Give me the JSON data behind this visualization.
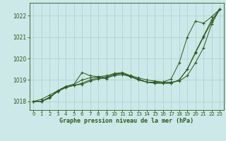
{
  "title": "Graphe pression niveau de la mer (hPa)",
  "background_color": "#cce8e8",
  "line_color": "#2d5a1b",
  "grid_color": "#b0d8d8",
  "xlim": [
    -0.5,
    23.5
  ],
  "ylim": [
    1017.6,
    1022.6
  ],
  "yticks": [
    1018,
    1019,
    1020,
    1021,
    1022
  ],
  "xticks": [
    0,
    1,
    2,
    3,
    4,
    5,
    6,
    7,
    8,
    9,
    10,
    11,
    12,
    13,
    14,
    15,
    16,
    17,
    18,
    19,
    20,
    21,
    22,
    23
  ],
  "series": [
    [
      1018.0,
      1018.0,
      1018.15,
      1018.5,
      1018.7,
      1018.8,
      1019.35,
      1019.2,
      1019.15,
      1019.05,
      1019.3,
      1019.3,
      1019.15,
      1019.05,
      1018.9,
      1018.9,
      1018.9,
      1019.05,
      1019.8,
      1021.0,
      1021.75,
      1021.65,
      1021.95,
      1022.3
    ],
    [
      1018.0,
      1018.0,
      1018.2,
      1018.5,
      1018.7,
      1018.8,
      1019.0,
      1019.1,
      1019.15,
      1019.2,
      1019.3,
      1019.35,
      1019.2,
      1019.1,
      1019.0,
      1018.95,
      1018.9,
      1018.9,
      1018.95,
      1019.2,
      1019.8,
      1020.5,
      1021.6,
      1022.3
    ],
    [
      1018.0,
      1018.0,
      1018.2,
      1018.45,
      1018.65,
      1018.75,
      1018.85,
      1019.0,
      1019.1,
      1019.15,
      1019.25,
      1019.3,
      1019.2,
      1019.0,
      1018.9,
      1018.85,
      1018.85,
      1018.85,
      1019.0,
      1019.5,
      1020.3,
      1021.05,
      1021.8,
      1022.3
    ],
    [
      1018.0,
      1018.1,
      1018.3,
      1018.5,
      1018.65,
      1018.75,
      1018.8,
      1018.95,
      1019.05,
      1019.1,
      1019.2,
      1019.25,
      1019.15,
      1019.0,
      1018.9,
      1018.85,
      1018.85,
      1018.85,
      1019.0,
      1019.5,
      1020.25,
      1021.0,
      1021.7,
      1022.3
    ]
  ]
}
